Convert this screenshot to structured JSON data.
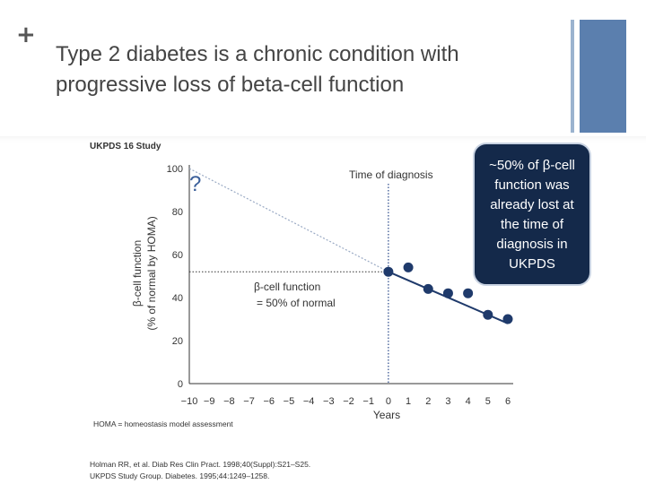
{
  "slide": {
    "plus_symbol": "+",
    "title_line1": "Type 2 diabetes is a chronic condition with",
    "title_line2": "progressive loss of beta-cell function",
    "accent_color": "#5b7fae"
  },
  "chart_data": {
    "type": "line",
    "study_label": "UKPDS 16 Study",
    "x": [
      0,
      1,
      2,
      3,
      4,
      5,
      6
    ],
    "x_ticks": [
      "−10",
      "−9",
      "−8",
      "−7",
      "−6",
      "−5",
      "−4",
      "−3",
      "−2",
      "−1",
      "0",
      "1",
      "2",
      "3",
      "4",
      "5",
      "6"
    ],
    "x_tick_values": [
      -10,
      -9,
      -8,
      -7,
      -6,
      -5,
      -4,
      -3,
      -2,
      -1,
      0,
      1,
      2,
      3,
      4,
      5,
      6
    ],
    "points": [
      {
        "x": 0,
        "y": 52
      },
      {
        "x": 1,
        "y": 54
      },
      {
        "x": 2,
        "y": 44
      },
      {
        "x": 3,
        "y": 42
      },
      {
        "x": 4,
        "y": 42
      },
      {
        "x": 5,
        "y": 32
      },
      {
        "x": 6,
        "y": 30
      }
    ],
    "trend_line": [
      {
        "x": 0,
        "y": 52
      },
      {
        "x": 6,
        "y": 28
      }
    ],
    "extrapolated_line": [
      {
        "x": -10,
        "y": 100
      },
      {
        "x": 0,
        "y": 52
      }
    ],
    "reference_y": 52,
    "diagnosis_x": 0,
    "y_ticks": [
      0,
      20,
      40,
      60,
      80,
      100
    ],
    "xlim": [
      -10,
      6
    ],
    "ylim": [
      0,
      100
    ],
    "xlabel": "Years",
    "ylabel_line1": "β-cell function",
    "ylabel_line2": "(% of normal by HOMA)",
    "annotations": {
      "question_mark": "?",
      "time_of_diagnosis": "Time of diagnosis",
      "beta_cell_line1": "β-cell function",
      "beta_cell_line2": "= 50% of normal"
    },
    "callout": {
      "lines": [
        "~50% of β-cell",
        "function was",
        "already lost at",
        "the time of",
        "diagnosis in",
        "UKPDS"
      ],
      "color": "#14294a"
    },
    "colors": {
      "data": "#1f3a6b",
      "extrapolated": "#9aaac4"
    },
    "footnotes": {
      "homa": "HOMA = homeostasis model assessment",
      "ref1": "Holman RR, et al. Diab Res Clin Pract. 1998;40(Suppl):S21–S25.",
      "ref2": "UKPDS Study Group. Diabetes. 1995;44:1249–1258."
    }
  }
}
